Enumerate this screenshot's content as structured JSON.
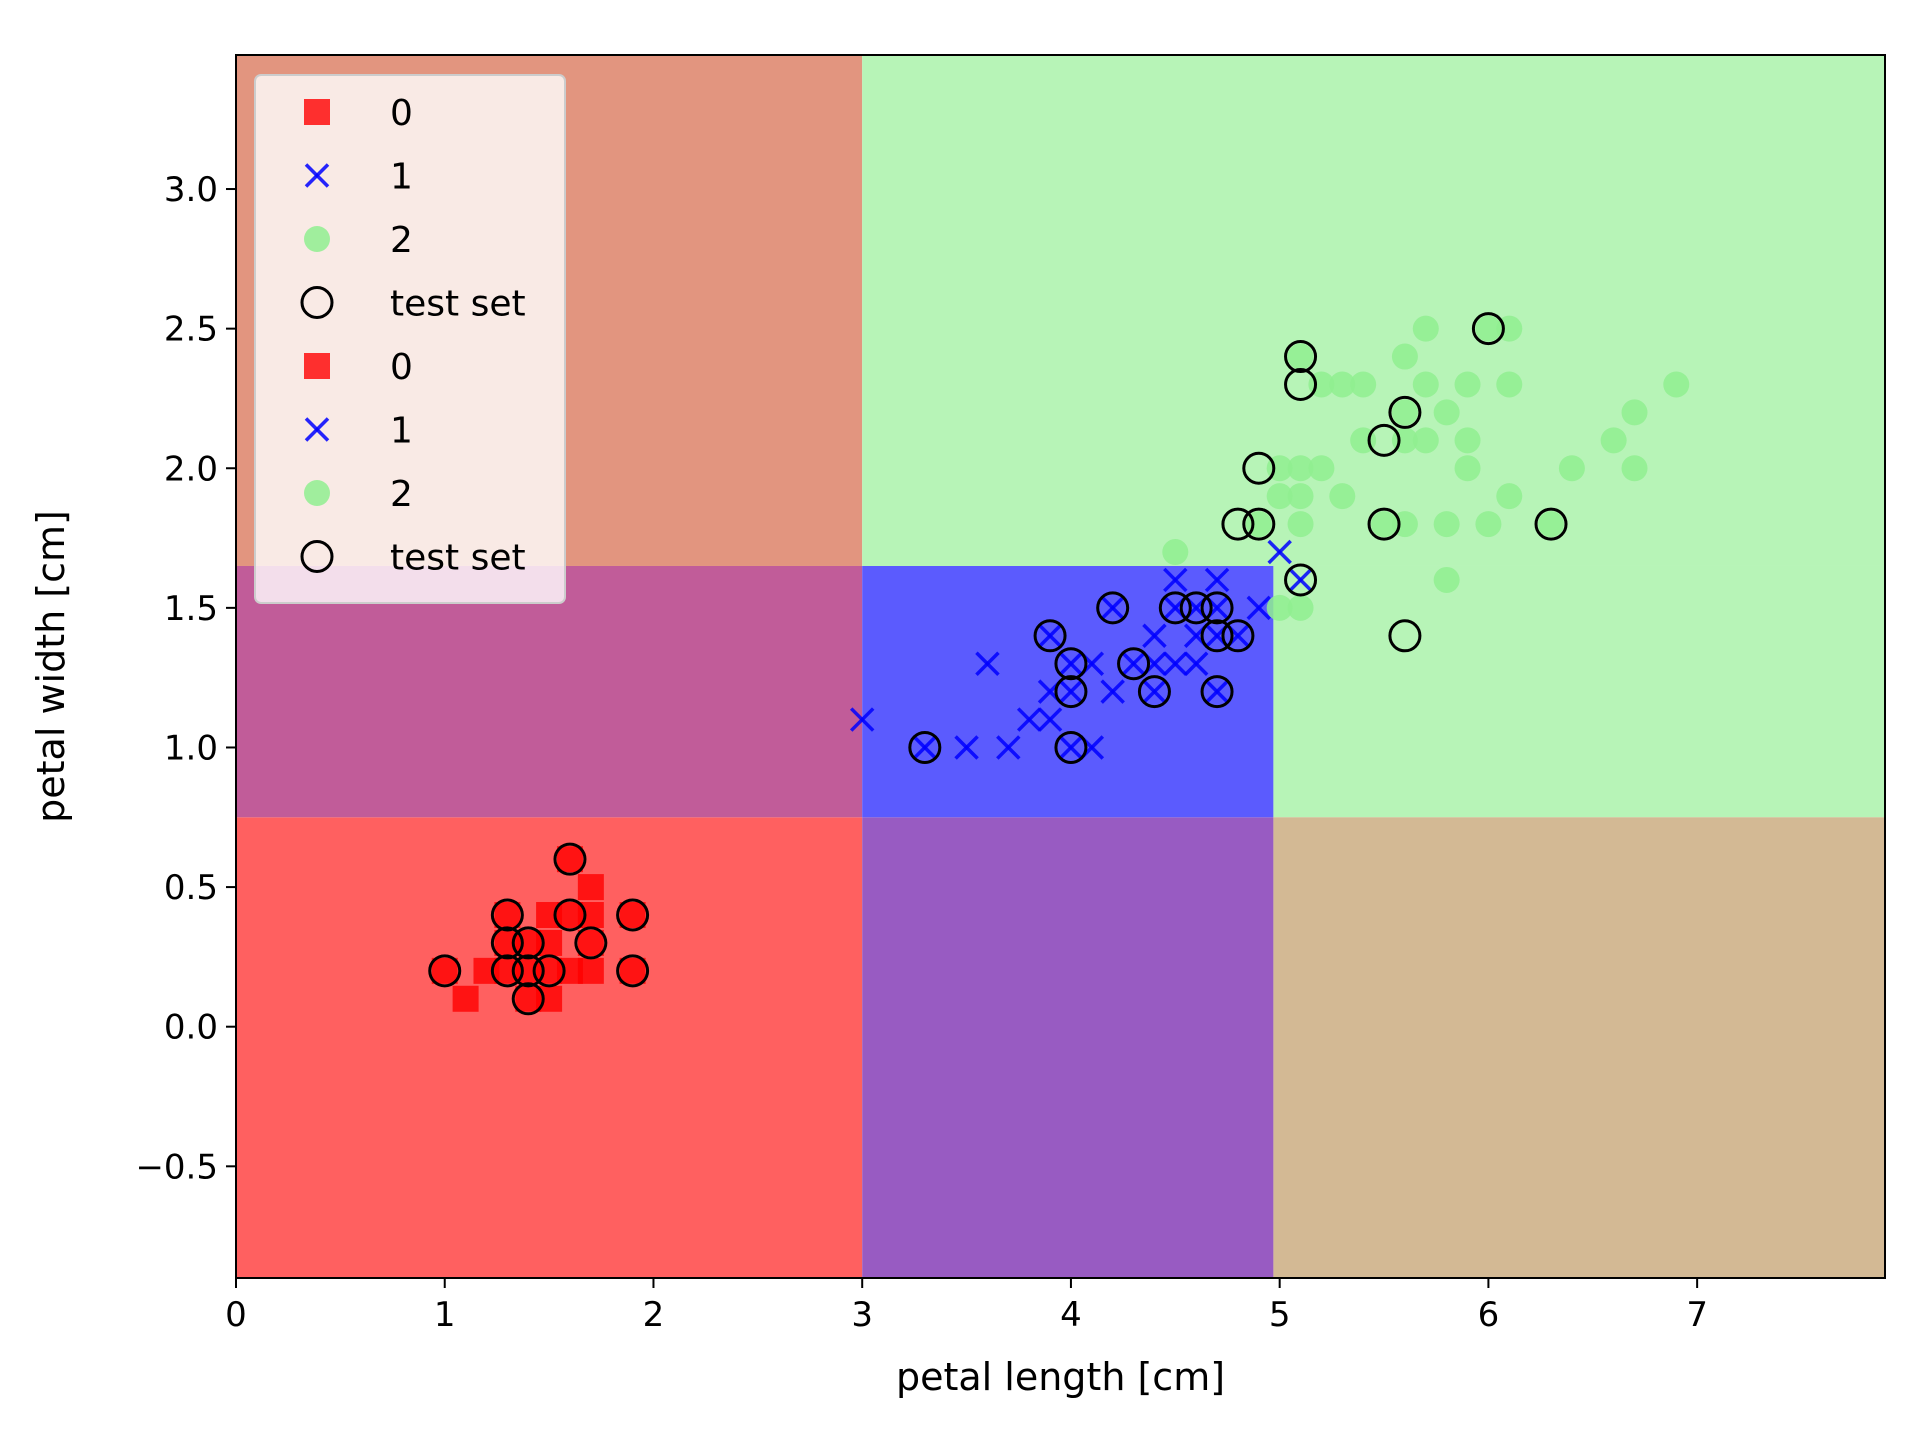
{
  "chart_data": {
    "type": "scatter",
    "title": "",
    "xlabel": "petal length [cm]",
    "ylabel": "petal width [cm]",
    "xlim": [
      0,
      7.9
    ],
    "ylim": [
      -0.9,
      3.48
    ],
    "xticks": [
      0,
      1,
      2,
      3,
      4,
      5,
      6,
      7
    ],
    "xtick_labels": [
      "0",
      "1",
      "2",
      "3",
      "4",
      "5",
      "6",
      "7"
    ],
    "yticks": [
      -0.5,
      0.0,
      0.5,
      1.0,
      1.5,
      2.0,
      2.5,
      3.0
    ],
    "ytick_labels": [
      "−0.5",
      "0.0",
      "0.5",
      "1.0",
      "1.5",
      "2.0",
      "2.5",
      "3.0"
    ],
    "grid": false,
    "legend_position": "upper-left",
    "legend": [
      {
        "label": "0",
        "marker": "square",
        "color": "#ff0000"
      },
      {
        "label": "1",
        "marker": "x",
        "color": "#0000ff"
      },
      {
        "label": "2",
        "marker": "circle",
        "color": "#90ee90"
      },
      {
        "label": "test set",
        "marker": "open-circle",
        "color": "#000000"
      },
      {
        "label": "0",
        "marker": "square",
        "color": "#ff0000"
      },
      {
        "label": "1",
        "marker": "x",
        "color": "#0000ff"
      },
      {
        "label": "2",
        "marker": "circle",
        "color": "#90ee90"
      },
      {
        "label": "test set",
        "marker": "open-circle",
        "color": "#000000"
      }
    ],
    "decision_regions": [
      {
        "x": [
          0,
          3.0
        ],
        "y": [
          -0.9,
          0.75
        ],
        "color": "#ff6060"
      },
      {
        "x": [
          0,
          3.0
        ],
        "y": [
          0.75,
          1.65
        ],
        "color": "#c15c99"
      },
      {
        "x": [
          0,
          3.0
        ],
        "y": [
          1.65,
          3.48
        ],
        "color": "#e2957f"
      },
      {
        "x": [
          3.0,
          4.97
        ],
        "y": [
          -0.9,
          0.75
        ],
        "color": "#985bc2"
      },
      {
        "x": [
          3.0,
          4.97
        ],
        "y": [
          0.75,
          1.65
        ],
        "color": "#5b5bfe"
      },
      {
        "x": [
          3.0,
          7.9
        ],
        "y": [
          1.65,
          3.48
        ],
        "color": "#b7f4b7"
      },
      {
        "x": [
          4.97,
          7.9
        ],
        "y": [
          0.75,
          1.65
        ],
        "color": "#b7f4b7"
      },
      {
        "x": [
          4.97,
          7.9
        ],
        "y": [
          -0.9,
          0.75
        ],
        "color": "#d3b994"
      }
    ],
    "series": [
      {
        "name": "0",
        "marker": "square",
        "color": "#ff0000",
        "points": [
          [
            1.1,
            0.1
          ],
          [
            1.4,
            0.1
          ],
          [
            1.5,
            0.1
          ],
          [
            1.2,
            0.2
          ],
          [
            1.3,
            0.2
          ],
          [
            1.4,
            0.2
          ],
          [
            1.5,
            0.2
          ],
          [
            1.6,
            0.2
          ],
          [
            1.7,
            0.2
          ],
          [
            1.0,
            0.2
          ],
          [
            1.9,
            0.2
          ],
          [
            1.3,
            0.3
          ],
          [
            1.4,
            0.3
          ],
          [
            1.5,
            0.3
          ],
          [
            1.7,
            0.3
          ],
          [
            1.5,
            0.4
          ],
          [
            1.6,
            0.4
          ],
          [
            1.7,
            0.4
          ],
          [
            1.3,
            0.4
          ],
          [
            1.9,
            0.4
          ],
          [
            1.7,
            0.5
          ],
          [
            1.6,
            0.6
          ]
        ]
      },
      {
        "name": "1",
        "marker": "x",
        "color": "#0000ff",
        "points": [
          [
            3.0,
            1.1
          ],
          [
            3.3,
            1.0
          ],
          [
            3.5,
            1.0
          ],
          [
            3.7,
            1.0
          ],
          [
            4.0,
            1.0
          ],
          [
            4.1,
            1.0
          ],
          [
            3.8,
            1.1
          ],
          [
            3.9,
            1.1
          ],
          [
            3.9,
            1.2
          ],
          [
            4.0,
            1.2
          ],
          [
            4.2,
            1.2
          ],
          [
            4.4,
            1.2
          ],
          [
            4.7,
            1.2
          ],
          [
            3.6,
            1.3
          ],
          [
            4.0,
            1.3
          ],
          [
            4.1,
            1.3
          ],
          [
            4.3,
            1.3
          ],
          [
            4.4,
            1.3
          ],
          [
            4.5,
            1.3
          ],
          [
            4.6,
            1.3
          ],
          [
            3.9,
            1.4
          ],
          [
            4.4,
            1.4
          ],
          [
            4.6,
            1.4
          ],
          [
            4.7,
            1.4
          ],
          [
            4.8,
            1.4
          ],
          [
            4.2,
            1.5
          ],
          [
            4.5,
            1.5
          ],
          [
            4.6,
            1.5
          ],
          [
            4.7,
            1.5
          ],
          [
            4.9,
            1.5
          ],
          [
            4.5,
            1.6
          ],
          [
            4.7,
            1.6
          ],
          [
            5.1,
            1.6
          ],
          [
            5.0,
            1.7
          ]
        ]
      },
      {
        "name": "2",
        "marker": "circle",
        "color": "#90ee90",
        "points": [
          [
            5.0,
            1.5
          ],
          [
            5.1,
            1.5
          ],
          [
            4.5,
            1.7
          ],
          [
            5.8,
            1.6
          ],
          [
            5.1,
            1.8
          ],
          [
            5.5,
            1.8
          ],
          [
            5.6,
            1.8
          ],
          [
            5.8,
            1.8
          ],
          [
            6.0,
            1.8
          ],
          [
            6.3,
            1.8
          ],
          [
            4.9,
            1.8
          ],
          [
            5.0,
            1.9
          ],
          [
            5.1,
            1.9
          ],
          [
            5.3,
            1.9
          ],
          [
            5.9,
            2.0
          ],
          [
            5.0,
            2.0
          ],
          [
            5.1,
            2.0
          ],
          [
            5.2,
            2.0
          ],
          [
            6.1,
            1.9
          ],
          [
            6.4,
            2.0
          ],
          [
            6.7,
            2.0
          ],
          [
            5.4,
            2.1
          ],
          [
            5.6,
            2.1
          ],
          [
            5.7,
            2.1
          ],
          [
            5.9,
            2.1
          ],
          [
            6.6,
            2.1
          ],
          [
            5.6,
            2.2
          ],
          [
            5.8,
            2.2
          ],
          [
            6.7,
            2.2
          ],
          [
            5.2,
            2.3
          ],
          [
            5.3,
            2.3
          ],
          [
            5.4,
            2.3
          ],
          [
            5.7,
            2.3
          ],
          [
            5.9,
            2.3
          ],
          [
            6.1,
            2.3
          ],
          [
            6.9,
            2.3
          ],
          [
            5.6,
            2.4
          ],
          [
            5.1,
            2.4
          ],
          [
            5.7,
            2.5
          ],
          [
            6.0,
            2.5
          ],
          [
            6.1,
            2.5
          ]
        ]
      },
      {
        "name": "test set",
        "marker": "open-circle",
        "color": "#000000",
        "points": [
          [
            1.0,
            0.2
          ],
          [
            1.3,
            0.2
          ],
          [
            1.4,
            0.2
          ],
          [
            1.5,
            0.2
          ],
          [
            1.9,
            0.2
          ],
          [
            1.3,
            0.3
          ],
          [
            1.4,
            0.3
          ],
          [
            1.7,
            0.3
          ],
          [
            1.3,
            0.4
          ],
          [
            1.6,
            0.4
          ],
          [
            1.9,
            0.4
          ],
          [
            1.6,
            0.6
          ],
          [
            1.4,
            0.1
          ],
          [
            3.3,
            1.0
          ],
          [
            4.0,
            1.0
          ],
          [
            4.0,
            1.2
          ],
          [
            4.4,
            1.2
          ],
          [
            4.7,
            1.2
          ],
          [
            4.0,
            1.3
          ],
          [
            4.3,
            1.3
          ],
          [
            3.9,
            1.4
          ],
          [
            4.7,
            1.4
          ],
          [
            4.8,
            1.4
          ],
          [
            4.2,
            1.5
          ],
          [
            4.5,
            1.5
          ],
          [
            4.6,
            1.5
          ],
          [
            4.7,
            1.5
          ],
          [
            5.1,
            1.6
          ],
          [
            5.6,
            1.4
          ],
          [
            4.8,
            1.8
          ],
          [
            4.9,
            1.8
          ],
          [
            5.5,
            1.8
          ],
          [
            6.3,
            1.8
          ],
          [
            4.9,
            2.0
          ],
          [
            5.5,
            2.1
          ],
          [
            5.6,
            2.2
          ],
          [
            5.1,
            2.3
          ],
          [
            5.1,
            2.4
          ],
          [
            6.0,
            2.5
          ]
        ]
      }
    ]
  }
}
